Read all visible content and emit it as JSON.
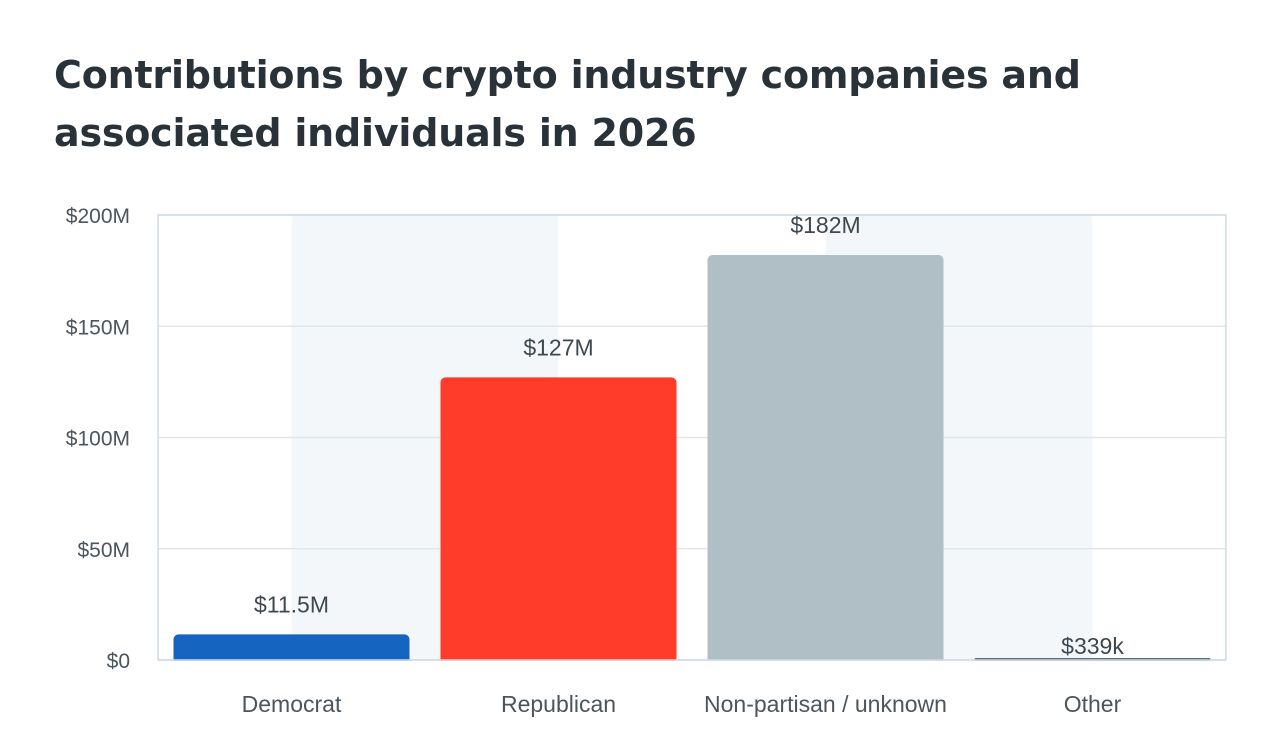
{
  "title_lines": [
    "Contributions by crypto industry companies and",
    "associated individuals in 2026"
  ],
  "chart_data": {
    "type": "bar",
    "title": "Contributions by crypto industry companies and associated individuals in 2026",
    "xlabel": "",
    "ylabel": "",
    "categories": [
      "Democrat",
      "Republican",
      "Non-partisan / unknown",
      "Other"
    ],
    "values": [
      11.5,
      127,
      182,
      0.339
    ],
    "unit": "millions USD",
    "data_labels": [
      "$11.5M",
      "$127M",
      "$182M",
      "$339k"
    ],
    "colors": [
      "#1565c0",
      "#ff3b2a",
      "#b0bec5",
      "#546e7a"
    ],
    "ylim": [
      0,
      200
    ],
    "yticks": [
      0,
      50,
      100,
      150,
      200
    ],
    "ytick_labels": [
      "$0",
      "$50M",
      "$100M",
      "$150M",
      "$200M"
    ],
    "grid": true,
    "legend": "none"
  }
}
